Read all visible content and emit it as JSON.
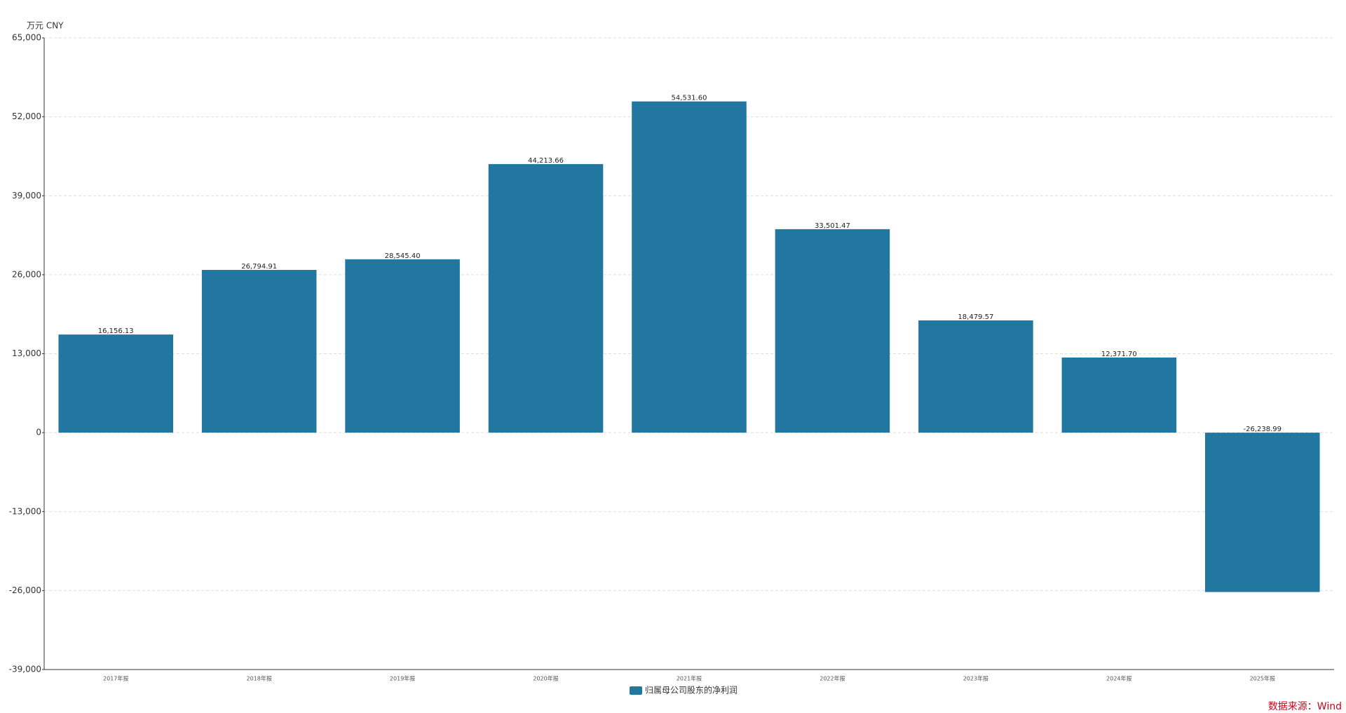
{
  "chart_data": {
    "type": "bar",
    "unit_label": "万元  CNY",
    "categories": [
      "2017年报",
      "2018年报",
      "2019年报",
      "2020年报",
      "2021年报",
      "2022年报",
      "2023年报",
      "2024年报",
      "2025年报"
    ],
    "series": [
      {
        "name": "归属母公司股东的净利润",
        "color": "#2277a0",
        "values": [
          16156.13,
          26794.91,
          28545.4,
          44213.66,
          54531.6,
          33501.47,
          18479.57,
          12371.7,
          -26238.99
        ],
        "value_labels": [
          "16,156.13",
          "26,794.91",
          "28,545.40",
          "44,213.66",
          "54,531.60",
          "33,501.47",
          "18,479.57",
          "12,371.70",
          "-26,238.99"
        ]
      }
    ],
    "ylim": [
      -39000,
      65000
    ],
    "yticks": [
      {
        "value": -39000,
        "label": "-39,000"
      },
      {
        "value": -26000,
        "label": "-26,000"
      },
      {
        "value": -13000,
        "label": "-13,000"
      },
      0,
      {
        "value": 13000,
        "label": "13,000"
      },
      {
        "value": 26000,
        "label": "26,000"
      },
      {
        "value": 39000,
        "label": "39,000"
      },
      {
        "value": 52000,
        "label": "52,000"
      },
      {
        "value": 65000,
        "label": "65,000"
      }
    ],
    "grid": true,
    "source": "数据来源：Wind"
  }
}
